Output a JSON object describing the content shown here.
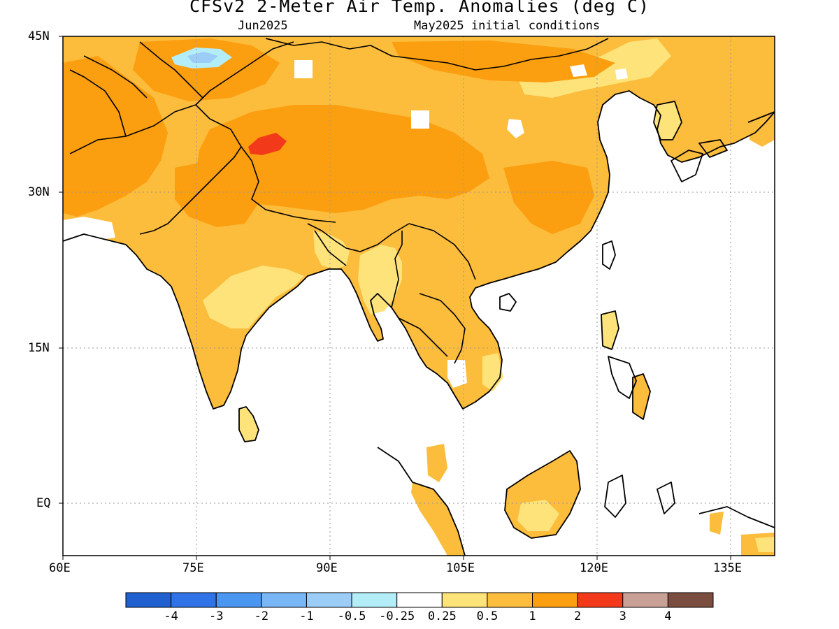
{
  "title": "CFSv2 2-Meter Air Temp. Anomalies (deg C)",
  "valid_month": "Jun2025",
  "initial_conditions": "May2025 initial conditions",
  "map": {
    "lon_range": [
      60,
      140
    ],
    "lat_range": [
      -6,
      45
    ],
    "grid": true,
    "x_ticks": [
      "60E",
      "75E",
      "90E",
      "105E",
      "120E",
      "135E"
    ],
    "y_ticks": [
      "45N",
      "30N",
      "15N",
      "EQ"
    ]
  },
  "colorbar": {
    "labels": [
      "-4",
      "-3",
      "-2",
      "-1",
      "-0.5",
      "-0.25",
      "0.25",
      "0.5",
      "1",
      "2",
      "3",
      "4"
    ],
    "colors": [
      "#1f5fcf",
      "#2f73e6",
      "#4a96f0",
      "#78b6f5",
      "#9ccdf7",
      "#b3edf7",
      "#ffffff",
      "#fde37a",
      "#fcbc3c",
      "#fb9e10",
      "#f23a1a",
      "#c9a095",
      "#7b4d3e"
    ]
  },
  "anomaly_colors": {
    "neg_025_05": "#b3edf7",
    "neg_05_1": "#9ccdf7",
    "pos_025_05": "#fde37a",
    "pos_05_1": "#fcbc3c",
    "pos_1_2": "#fb9e10",
    "pos_2_3": "#f23a1a"
  }
}
